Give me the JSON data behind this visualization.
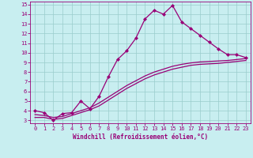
{
  "xlabel": "Windchill (Refroidissement éolien,°C)",
  "bg_color": "#c8eef0",
  "line_color": "#990077",
  "grid_color": "#99cccc",
  "xlim": [
    -0.5,
    23.5
  ],
  "ylim": [
    2.7,
    15.3
  ],
  "xticks": [
    0,
    1,
    2,
    3,
    4,
    5,
    6,
    7,
    8,
    9,
    10,
    11,
    12,
    13,
    14,
    15,
    16,
    17,
    18,
    19,
    20,
    21,
    22,
    23
  ],
  "yticks": [
    3,
    4,
    5,
    6,
    7,
    8,
    9,
    10,
    11,
    12,
    13,
    14,
    15
  ],
  "line1_x": [
    0,
    1,
    2,
    3,
    4,
    5,
    6,
    7,
    8,
    9,
    10,
    11,
    12,
    13,
    14,
    15,
    16,
    17,
    18,
    19,
    20,
    21,
    22,
    23
  ],
  "line1_y": [
    4.0,
    3.8,
    3.0,
    3.7,
    3.8,
    5.0,
    4.2,
    5.5,
    7.5,
    9.3,
    10.2,
    11.5,
    13.5,
    14.4,
    14.0,
    14.9,
    13.2,
    12.5,
    11.8,
    11.1,
    10.4,
    9.8,
    9.8,
    9.5
  ],
  "line2_x": [
    0,
    1,
    2,
    3,
    4,
    5,
    6,
    7,
    8,
    9,
    10,
    11,
    12,
    13,
    14,
    15,
    16,
    17,
    18,
    19,
    20,
    21,
    22,
    23
  ],
  "line2_y": [
    3.3,
    3.3,
    3.1,
    3.2,
    3.5,
    3.8,
    4.1,
    4.5,
    5.1,
    5.7,
    6.3,
    6.8,
    7.3,
    7.7,
    8.0,
    8.3,
    8.5,
    8.7,
    8.8,
    8.85,
    8.9,
    9.0,
    9.1,
    9.2
  ],
  "line3_x": [
    0,
    1,
    2,
    3,
    4,
    5,
    6,
    7,
    8,
    9,
    10,
    11,
    12,
    13,
    14,
    15,
    16,
    17,
    18,
    19,
    20,
    21,
    22,
    23
  ],
  "line3_y": [
    3.6,
    3.5,
    3.3,
    3.4,
    3.7,
    4.0,
    4.3,
    4.8,
    5.4,
    6.0,
    6.6,
    7.1,
    7.6,
    8.0,
    8.3,
    8.6,
    8.8,
    8.95,
    9.05,
    9.1,
    9.15,
    9.2,
    9.3,
    9.4
  ],
  "marker": "D",
  "markersize": 2.0,
  "linewidth": 0.9,
  "tick_fontsize": 5,
  "xlabel_fontsize": 5.5
}
